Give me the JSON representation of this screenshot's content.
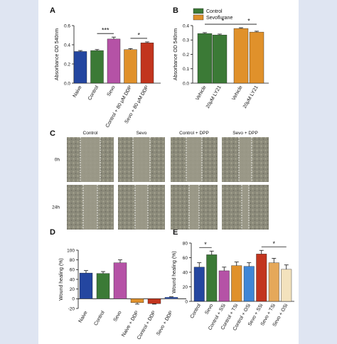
{
  "panel_letters": [
    "A",
    "B",
    "C",
    "D",
    "E"
  ],
  "chart_data": [
    {
      "panel": "A",
      "type": "bar",
      "ylabel": "Absorbance OD 540nm",
      "ylim": [
        0,
        0.6
      ],
      "yticks": [
        "0.0",
        "0.2",
        "0.4",
        "0.6"
      ],
      "categories": [
        "Naive",
        "Control",
        "Sevo",
        "Control + 80 μM DDP",
        "Sevo + 80 μM DDP"
      ],
      "values": [
        0.33,
        0.34,
        0.46,
        0.35,
        0.42
      ],
      "errors": [
        0.01,
        0.01,
        0.02,
        0.01,
        0.01
      ],
      "colors": [
        "#2446a0",
        "#3b7a36",
        "#b552a6",
        "#e0912b",
        "#c2351e"
      ],
      "annotations": [
        {
          "text": "***",
          "from": 1,
          "to": 2
        },
        {
          "text": "*",
          "from": 3,
          "to": 4
        }
      ]
    },
    {
      "panel": "B",
      "type": "bar",
      "ylabel": "Absorbance OD 540nm",
      "ylim": [
        0,
        0.4
      ],
      "yticks": [
        "0.0",
        "0.1",
        "0.2",
        "0.3",
        "0.4"
      ],
      "categories": [
        "Vehicle",
        "20μM LY21",
        "Vehicle",
        "20μM LY21"
      ],
      "values": [
        0.345,
        0.335,
        0.38,
        0.355
      ],
      "errors": [
        0.006,
        0.006,
        0.005,
        0.006
      ],
      "colors": [
        "#3b7a36",
        "#3b7a36",
        "#e0912b",
        "#e0912b"
      ],
      "legend": [
        {
          "name": "Control",
          "color": "#3b7a36"
        },
        {
          "name": "Sevoflurane",
          "color": "#e0912b"
        }
      ],
      "legend_position": "top-left",
      "annotations": [
        {
          "text": "*",
          "from": 0,
          "to": 2
        },
        {
          "text": "*",
          "from": 2,
          "to": 3
        }
      ]
    },
    {
      "panel": "D",
      "type": "bar",
      "ylabel": "Wound healing (%)",
      "ylim": [
        -20,
        100
      ],
      "yticks": [
        "-20",
        "0",
        "20",
        "40",
        "60",
        "80",
        "100"
      ],
      "categories": [
        "Naive",
        "Control",
        "Sevo",
        "Naive + DDP",
        "Control + DDP",
        "Sevo + DDP"
      ],
      "values": [
        53,
        52,
        74,
        -8,
        -10,
        3
      ],
      "errors": [
        5,
        4,
        6,
        3,
        1,
        1
      ],
      "colors": [
        "#2446a0",
        "#3b7a36",
        "#b552a6",
        "#e0912b",
        "#c2351e",
        "#3a62c4"
      ]
    },
    {
      "panel": "E",
      "type": "bar",
      "ylabel": "Wound healing (%)",
      "ylim": [
        0,
        80
      ],
      "yticks": [
        "0",
        "20",
        "40",
        "60",
        "80"
      ],
      "categories": [
        "Control",
        "Sevo",
        "Control + SSi",
        "Control + TSi",
        "Control + OSi",
        "Sevo + SSi",
        "Sevo + TSi",
        "Sevo + OSi"
      ],
      "values": [
        47,
        64,
        42,
        49,
        48,
        65,
        53,
        44
      ],
      "errors": [
        6,
        5,
        5,
        5,
        5,
        5,
        6,
        6
      ],
      "colors": [
        "#2446a0",
        "#3b7a36",
        "#b552a6",
        "#e0912b",
        "#3f86d6",
        "#c2351e",
        "#e5a85a",
        "#f3e2bd"
      ],
      "annotations": [
        {
          "text": "*",
          "from": 0,
          "to": 1
        },
        {
          "text": "*",
          "from": 5,
          "to": 7
        }
      ]
    }
  ],
  "image_panel": {
    "panel": "C",
    "columns": [
      "Control",
      "Sevo",
      "Control + DPP",
      "Sevo + DPP"
    ],
    "rows": [
      "0h",
      "24h"
    ]
  }
}
